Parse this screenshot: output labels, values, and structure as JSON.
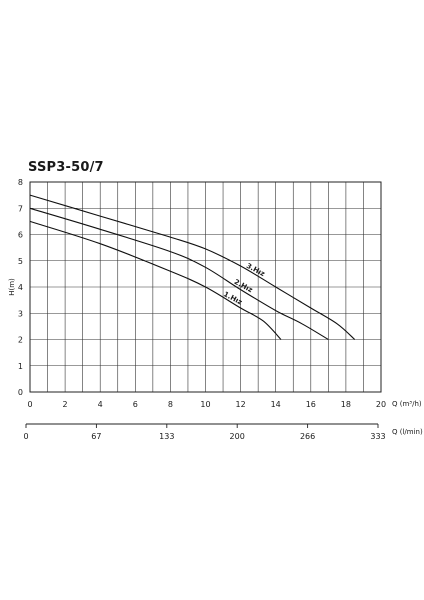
{
  "chart_data": {
    "type": "line",
    "title": "SSP3-50/7",
    "ylabel": "H(m)",
    "xlabel": "Q (m³/h)",
    "xlabel_secondary": "Q (l/min)",
    "xlim": [
      0,
      20
    ],
    "ylim": [
      0,
      8
    ],
    "x_ticks": [
      0,
      2,
      4,
      6,
      8,
      10,
      12,
      14,
      16,
      18,
      20
    ],
    "y_ticks": [
      0,
      1,
      2,
      3,
      4,
      5,
      6,
      7,
      8
    ],
    "secondary_ticks": [
      {
        "q_m3h": 0,
        "label": "0"
      },
      {
        "q_m3h": 4,
        "label": "67"
      },
      {
        "q_m3h": 8,
        "label": "133"
      },
      {
        "q_m3h": 12,
        "label": "200"
      },
      {
        "q_m3h": 16,
        "label": "266"
      },
      {
        "q_m3h": 20,
        "label": "333"
      }
    ],
    "grid": true,
    "series": [
      {
        "name": "3.Hız",
        "x": [
          0,
          4,
          8,
          10,
          12,
          14,
          16,
          17.5,
          18.5
        ],
        "y": [
          7.5,
          6.7,
          5.9,
          5.45,
          4.8,
          4.0,
          3.2,
          2.6,
          2.0
        ]
      },
      {
        "name": "2.Hız",
        "x": [
          0,
          4,
          8,
          10,
          12,
          14,
          15.5,
          17
        ],
        "y": [
          7.0,
          6.2,
          5.35,
          4.75,
          3.9,
          3.1,
          2.6,
          2.0
        ]
      },
      {
        "name": "1.Hız",
        "x": [
          0,
          4,
          8,
          10,
          12,
          13.3,
          14.3
        ],
        "y": [
          6.5,
          5.65,
          4.6,
          4.0,
          3.2,
          2.7,
          2.0
        ]
      }
    ]
  }
}
